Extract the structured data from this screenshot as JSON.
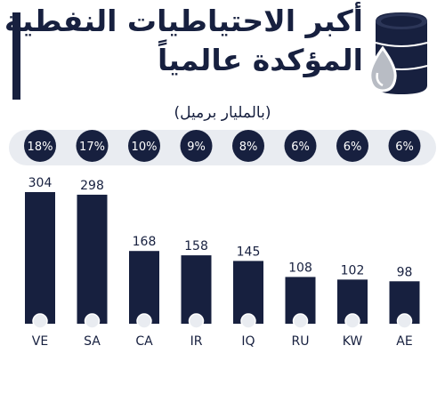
{
  "title_line1": "أكبر الاحتياطيات النفطية",
  "title_line2": "المؤكدة عالمياً",
  "unit": "(بالمليار برميل)",
  "icons": [
    "oil-barrel-icon",
    "oil-drop-icon",
    "flag-icon"
  ],
  "colors": {
    "navy": "#17203f",
    "band": "#e9ecf1",
    "drop": "#b8bcc4"
  },
  "chart_data": {
    "type": "bar",
    "categories": [
      "VE",
      "SA",
      "CA",
      "IR",
      "IQ",
      "RU",
      "KW",
      "AE"
    ],
    "values": [
      304,
      298,
      168,
      158,
      145,
      108,
      102,
      98
    ],
    "shares": [
      "18%",
      "17%",
      "10%",
      "9%",
      "8%",
      "6%",
      "6%",
      "6%"
    ],
    "ylim": [
      0,
      304
    ],
    "title": "أكبر الاحتياطيات النفطية المؤكدة عالمياً",
    "ylabel": "(بالمليار برميل)",
    "xlabel": "",
    "grid": false
  }
}
